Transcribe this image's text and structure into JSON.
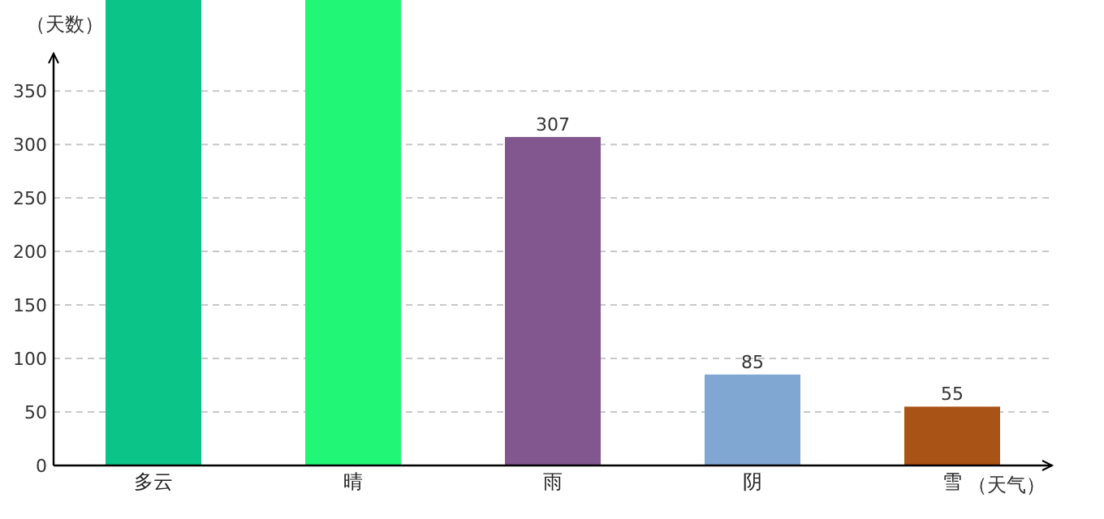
{
  "chart_data": {
    "type": "bar",
    "xlabel": "（天气）",
    "ylabel": "（天数）",
    "categories": [
      "多云",
      "晴",
      "雨",
      "阴",
      "雪"
    ],
    "values": [
      435,
      435,
      307,
      85,
      55
    ],
    "colors": [
      "#0bc487",
      "#21f676",
      "#82568f",
      "#80a6d2",
      "#a95316"
    ],
    "value_labels": [
      null,
      null,
      "307",
      "85",
      "55"
    ],
    "ylim": [
      0,
      435
    ],
    "yticks": [
      0,
      50,
      100,
      150,
      200,
      250,
      300,
      350
    ],
    "grid": "y"
  }
}
